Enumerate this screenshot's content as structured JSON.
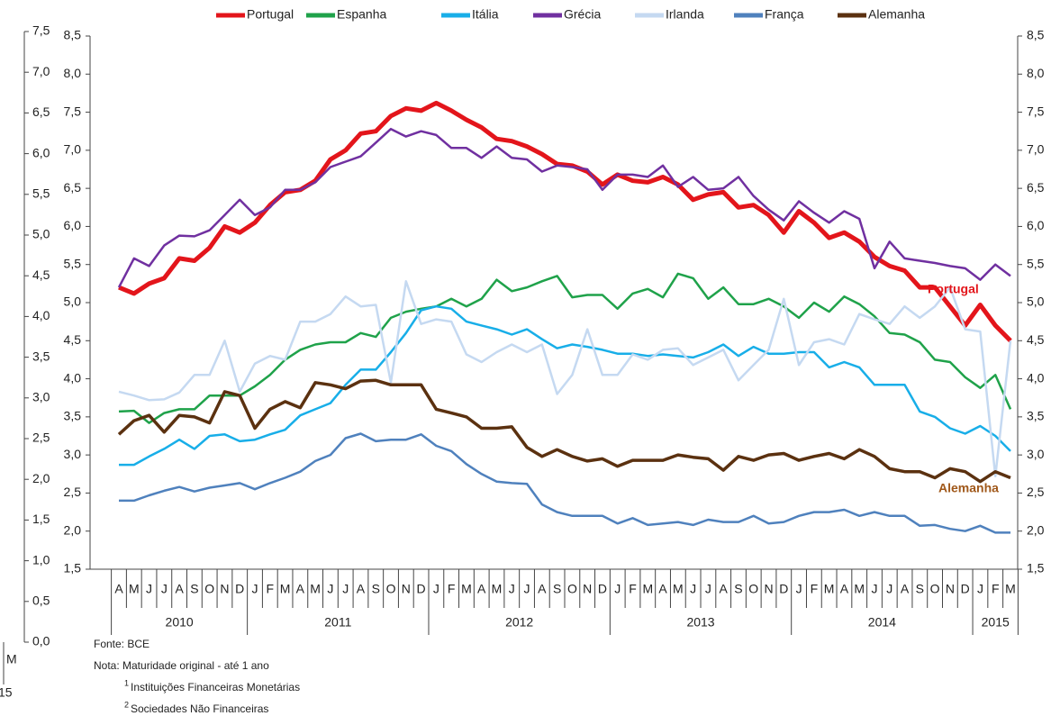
{
  "chart_data": [
    {
      "type": "line",
      "categories": [
        "A",
        "M",
        "J",
        "J",
        "A",
        "S",
        "O",
        "N",
        "D",
        "J",
        "F",
        "M",
        "A",
        "M",
        "J",
        "J",
        "A",
        "S",
        "O",
        "N",
        "D",
        "J",
        "F",
        "M",
        "A",
        "M",
        "J",
        "J",
        "A",
        "S",
        "O",
        "N",
        "D",
        "J",
        "F",
        "M",
        "A",
        "M",
        "J",
        "J",
        "A",
        "S",
        "O",
        "N",
        "D",
        "J",
        "F",
        "M",
        "A",
        "M",
        "J",
        "J",
        "A",
        "S",
        "O",
        "N",
        "D",
        "J",
        "F",
        "M"
      ],
      "years": [
        "2010",
        "2011",
        "2012",
        "2013",
        "2014",
        "2015"
      ],
      "ylim": [
        1.5,
        8.5
      ],
      "yticks": [
        {
          "value": 1.5,
          "label": "1,5"
        },
        {
          "value": 2.0,
          "label": "2,0"
        },
        {
          "value": 2.5,
          "label": "2,5"
        },
        {
          "value": 3.0,
          "label": "3,0"
        },
        {
          "value": 3.5,
          "label": "3,5"
        },
        {
          "value": 4.0,
          "label": "4,0"
        },
        {
          "value": 4.5,
          "label": "4,5"
        },
        {
          "value": 5.0,
          "label": "5,0"
        },
        {
          "value": 5.5,
          "label": "5,5"
        },
        {
          "value": 6.0,
          "label": "6,0"
        },
        {
          "value": 6.5,
          "label": "6,5"
        },
        {
          "value": 7.0,
          "label": "7,0"
        },
        {
          "value": 7.5,
          "label": "7,5"
        },
        {
          "value": 8.0,
          "label": "8,0"
        },
        {
          "value": 8.5,
          "label": "8,5"
        }
      ],
      "grid": false,
      "legend": "top",
      "series": [
        {
          "name": "Portugal",
          "color": "#e3151b",
          "values": [
            5.2,
            5.12,
            5.25,
            5.32,
            5.58,
            5.55,
            5.72,
            6.0,
            5.92,
            6.05,
            6.28,
            6.45,
            6.48,
            6.6,
            6.88,
            7.0,
            7.22,
            7.25,
            7.45,
            7.55,
            7.52,
            7.62,
            7.52,
            7.4,
            7.3,
            7.15,
            7.12,
            7.05,
            6.95,
            6.82,
            6.8,
            6.72,
            6.55,
            6.68,
            6.6,
            6.58,
            6.65,
            6.55,
            6.35,
            6.42,
            6.45,
            6.25,
            6.28,
            6.15,
            5.92,
            6.2,
            6.05,
            5.85,
            5.92,
            5.8,
            5.6,
            5.48,
            5.42,
            5.2,
            5.2,
            4.95,
            4.7,
            4.97,
            4.7,
            4.5
          ]
        },
        {
          "name": "Espanha",
          "color": "#1fa24a",
          "values": [
            3.57,
            3.58,
            3.42,
            3.55,
            3.6,
            3.6,
            3.78,
            3.78,
            3.78,
            3.9,
            4.05,
            4.25,
            4.38,
            4.45,
            4.48,
            4.48,
            4.6,
            4.55,
            4.8,
            4.88,
            4.92,
            4.95,
            5.05,
            4.95,
            5.05,
            5.3,
            5.15,
            5.2,
            5.28,
            5.35,
            5.07,
            5.1,
            5.1,
            4.92,
            5.12,
            5.18,
            5.07,
            5.38,
            5.32,
            5.05,
            5.2,
            4.98,
            4.98,
            5.05,
            4.95,
            4.8,
            5.0,
            4.88,
            5.08,
            4.98,
            4.82,
            4.6,
            4.58,
            4.48,
            4.25,
            4.22,
            4.02,
            3.88,
            4.05,
            3.6
          ]
        },
        {
          "name": "Itália",
          "color": "#18aee8",
          "values": [
            2.87,
            2.87,
            2.98,
            3.08,
            3.2,
            3.08,
            3.25,
            3.27,
            3.18,
            3.2,
            3.27,
            3.33,
            3.52,
            3.6,
            3.68,
            3.92,
            4.12,
            4.12,
            4.35,
            4.6,
            4.9,
            4.95,
            4.92,
            4.75,
            4.7,
            4.65,
            4.58,
            4.65,
            4.52,
            4.4,
            4.45,
            4.42,
            4.38,
            4.33,
            4.33,
            4.3,
            4.32,
            4.3,
            4.28,
            4.35,
            4.45,
            4.3,
            4.42,
            4.33,
            4.33,
            4.35,
            4.35,
            4.15,
            4.22,
            4.15,
            3.92,
            3.92,
            3.92,
            3.57,
            3.5,
            3.35,
            3.28,
            3.38,
            3.25,
            3.05
          ]
        },
        {
          "name": "Grécia",
          "color": "#7030a0",
          "values": [
            5.2,
            5.58,
            5.48,
            5.75,
            5.88,
            5.87,
            5.95,
            6.15,
            6.35,
            6.15,
            6.25,
            6.48,
            6.48,
            6.58,
            6.78,
            6.85,
            6.92,
            7.1,
            7.28,
            7.18,
            7.25,
            7.2,
            7.03,
            7.03,
            6.9,
            7.05,
            6.9,
            6.88,
            6.72,
            6.8,
            6.78,
            6.75,
            6.48,
            6.68,
            6.68,
            6.65,
            6.8,
            6.52,
            6.65,
            6.48,
            6.5,
            6.65,
            6.4,
            6.22,
            6.08,
            6.33,
            6.18,
            6.05,
            6.2,
            6.1,
            5.45,
            5.8,
            5.58,
            5.55,
            5.52,
            5.48,
            5.45,
            5.3,
            5.5,
            5.35
          ]
        },
        {
          "name": "Irlanda",
          "color": "#c5d9f1",
          "values": [
            3.83,
            3.78,
            3.72,
            3.73,
            3.82,
            4.05,
            4.05,
            4.5,
            3.83,
            4.2,
            4.3,
            4.25,
            4.75,
            4.75,
            4.85,
            5.08,
            4.95,
            4.97,
            3.95,
            5.28,
            4.72,
            4.78,
            4.75,
            4.32,
            4.22,
            4.35,
            4.45,
            4.35,
            4.45,
            3.8,
            4.05,
            4.65,
            4.05,
            4.05,
            4.32,
            4.25,
            4.38,
            4.4,
            4.18,
            4.28,
            4.38,
            3.98,
            4.18,
            4.38,
            5.05,
            4.18,
            4.48,
            4.52,
            4.45,
            4.85,
            4.78,
            4.72,
            4.95,
            4.8,
            4.95,
            5.2,
            4.65,
            4.62,
            2.72,
            4.5
          ]
        },
        {
          "name": "França",
          "color": "#4f81bd",
          "values": [
            2.4,
            2.4,
            2.47,
            2.53,
            2.58,
            2.52,
            2.57,
            2.6,
            2.63,
            2.55,
            2.63,
            2.7,
            2.78,
            2.92,
            3.0,
            3.22,
            3.28,
            3.18,
            3.2,
            3.2,
            3.27,
            3.12,
            3.05,
            2.88,
            2.75,
            2.65,
            2.63,
            2.62,
            2.35,
            2.25,
            2.2,
            2.2,
            2.2,
            2.1,
            2.17,
            2.08,
            2.1,
            2.12,
            2.08,
            2.15,
            2.12,
            2.12,
            2.2,
            2.1,
            2.12,
            2.2,
            2.25,
            2.25,
            2.28,
            2.2,
            2.25,
            2.2,
            2.2,
            2.07,
            2.08,
            2.03,
            2.0,
            2.07,
            1.98,
            1.98
          ]
        },
        {
          "name": "Alemanha",
          "color": "#5b3110",
          "values": [
            3.27,
            3.45,
            3.52,
            3.3,
            3.52,
            3.5,
            3.42,
            3.83,
            3.78,
            3.35,
            3.6,
            3.7,
            3.62,
            3.95,
            3.92,
            3.87,
            3.97,
            3.98,
            3.92,
            3.92,
            3.92,
            3.6,
            3.55,
            3.5,
            3.35,
            3.35,
            3.37,
            3.1,
            2.98,
            3.07,
            2.98,
            2.92,
            2.95,
            2.85,
            2.93,
            2.93,
            2.93,
            3.0,
            2.97,
            2.95,
            2.8,
            2.98,
            2.93,
            3.0,
            3.02,
            2.93,
            2.98,
            3.02,
            2.95,
            3.07,
            2.98,
            2.82,
            2.78,
            2.78,
            2.7,
            2.82,
            2.78,
            2.65,
            2.78,
            2.7
          ]
        }
      ],
      "annotations": [
        {
          "text": "Portugal",
          "color": "#e3151b"
        },
        {
          "text": "Alemanha",
          "color": "#a0581a"
        }
      ]
    },
    {
      "type": "line",
      "ylim": [
        0,
        7.5
      ],
      "yticks": [
        {
          "value": 0,
          "label": "0,0"
        },
        {
          "value": 0.5,
          "label": "0,5"
        },
        {
          "value": 1.0,
          "label": "1,0"
        },
        {
          "value": 1.5,
          "label": "1,5"
        },
        {
          "value": 2.0,
          "label": "2,0"
        },
        {
          "value": 2.5,
          "label": "2,5"
        },
        {
          "value": 3.0,
          "label": "3,0"
        },
        {
          "value": 3.5,
          "label": "3,5"
        },
        {
          "value": 4.0,
          "label": "4,0"
        },
        {
          "value": 4.5,
          "label": "4,5"
        },
        {
          "value": 5.0,
          "label": "5,0"
        },
        {
          "value": 5.5,
          "label": "5,5"
        },
        {
          "value": 6.0,
          "label": "6,0"
        },
        {
          "value": 6.5,
          "label": "6,5"
        },
        {
          "value": 7.0,
          "label": "7,0"
        },
        {
          "value": 7.5,
          "label": "7,5"
        }
      ],
      "categories": [
        "M"
      ],
      "years": [
        "15"
      ]
    }
  ],
  "notes": {
    "source": "Fonte: BCE",
    "note": "Nota: Maturidade original - até 1 ano",
    "footnotes": [
      {
        "mark": "1",
        "text": "Instituições Financeiras Monetárias"
      },
      {
        "mark": "2",
        "text": "Sociedades Não Financeiras"
      }
    ]
  }
}
